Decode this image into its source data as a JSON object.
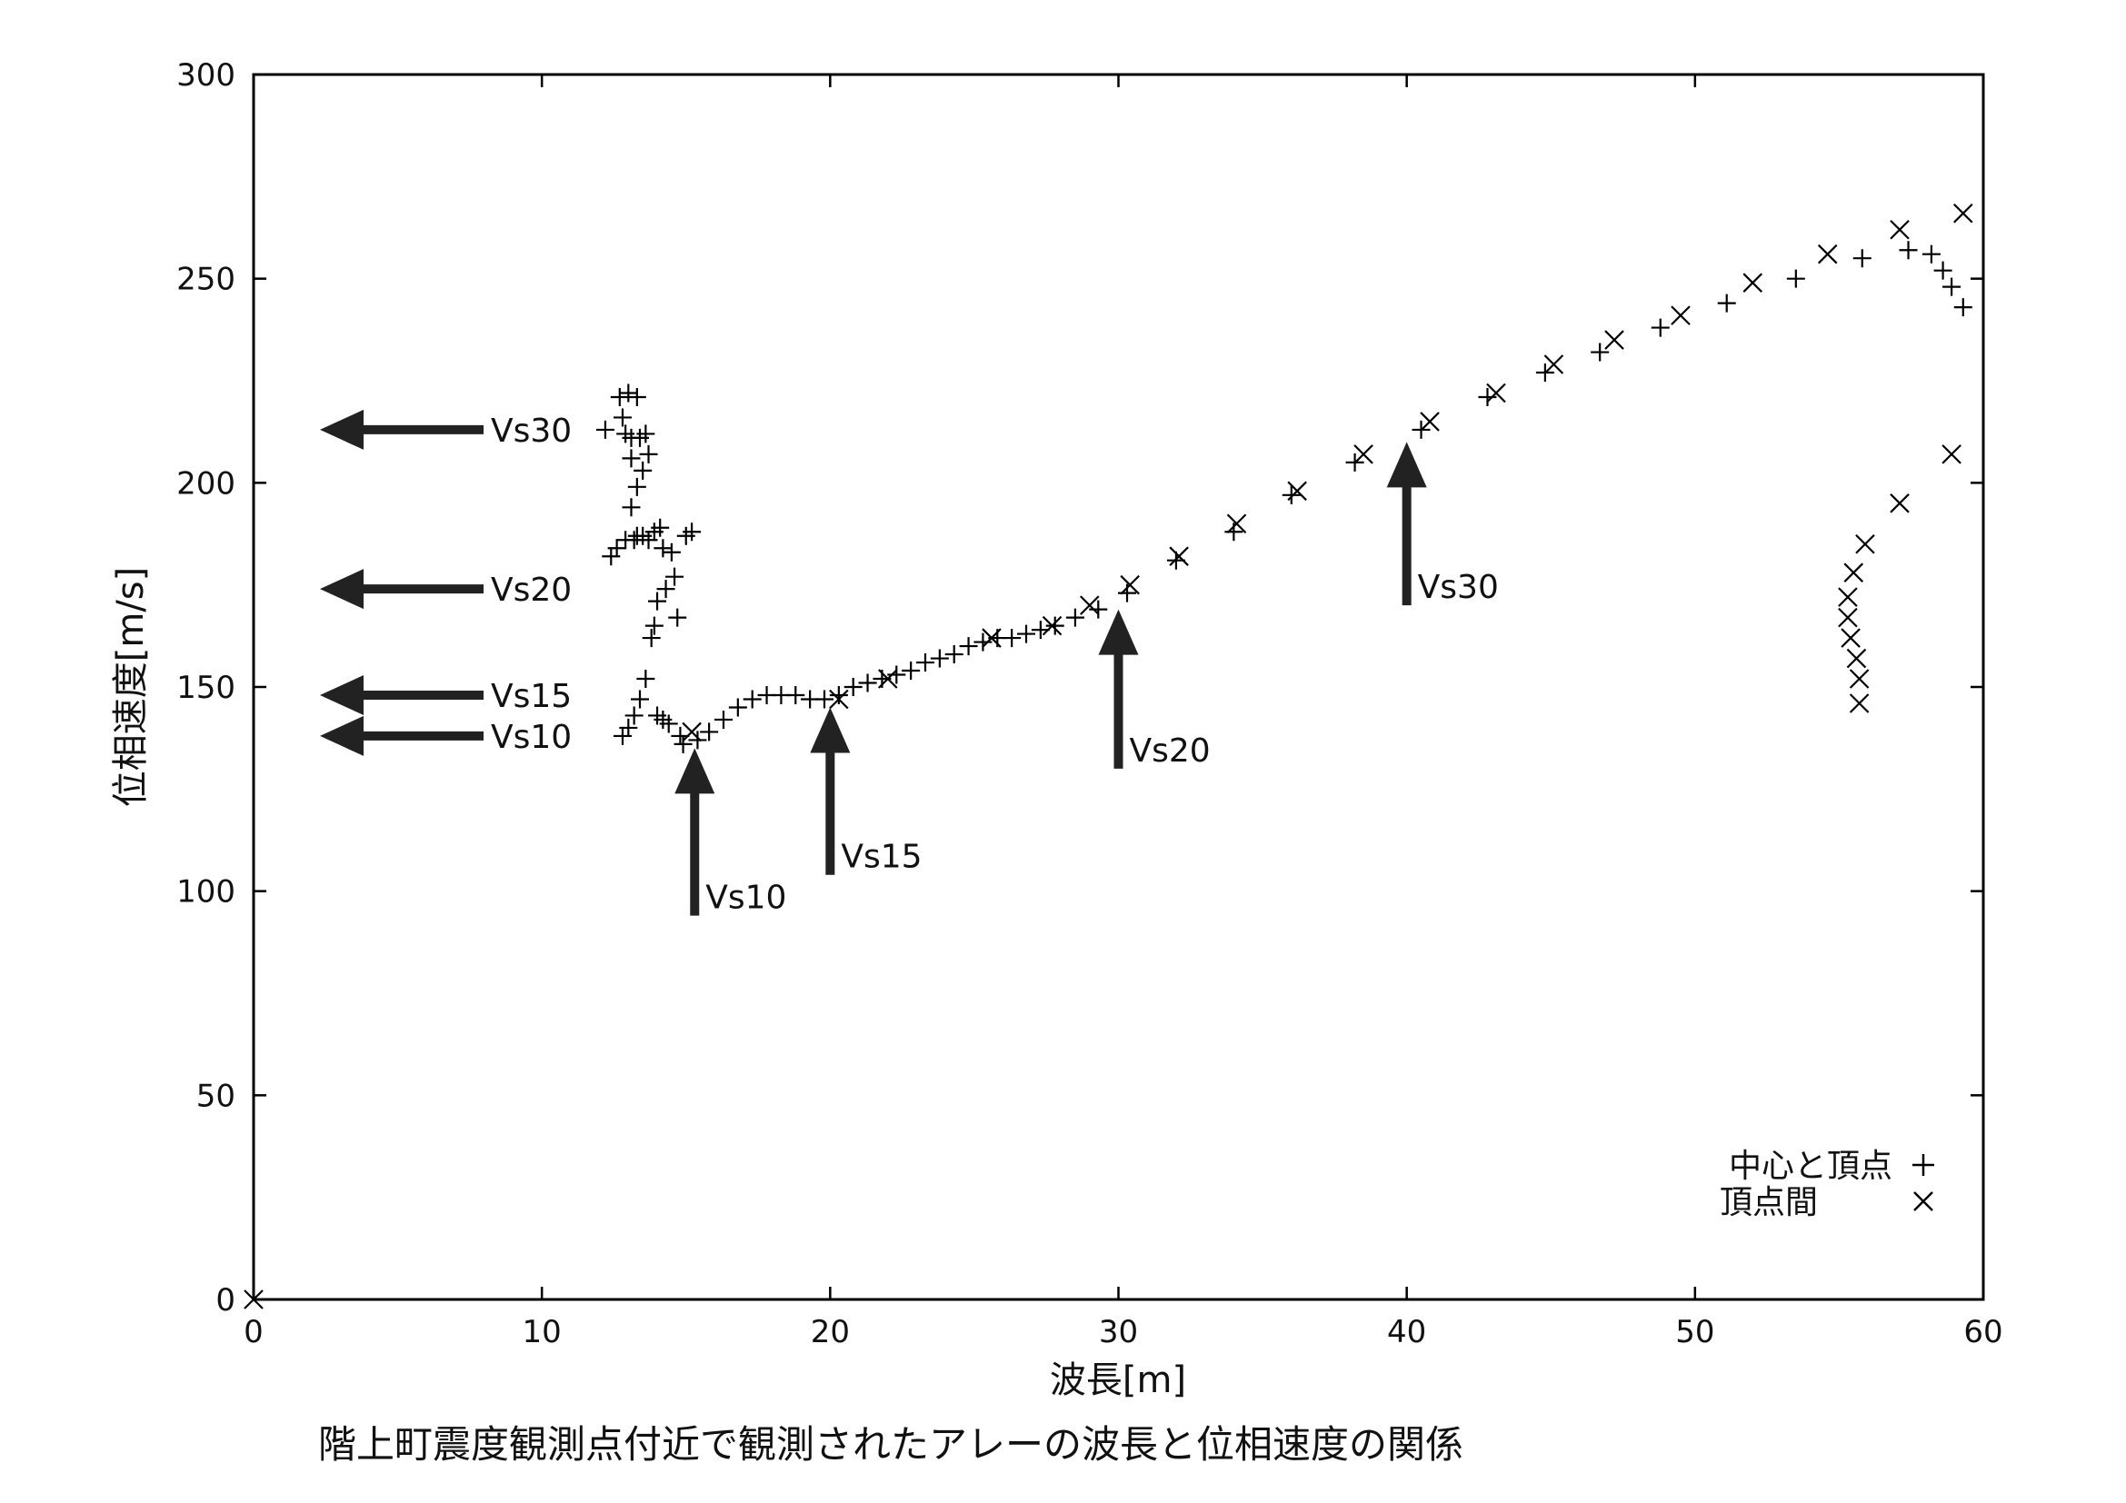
{
  "chart_data": {
    "type": "scatter",
    "title": "階上町震度観測点付近で観測されたアレーの波長と位相速度の関係",
    "xlabel": "波長[m]",
    "ylabel": "位相速度[m/s]",
    "xlim": [
      0,
      60
    ],
    "ylim": [
      0,
      300
    ],
    "xticks": [
      0,
      10,
      20,
      30,
      40,
      50,
      60
    ],
    "yticks": [
      0,
      50,
      100,
      150,
      200,
      250,
      300
    ],
    "grid": false,
    "legend_position": "bottom-right",
    "series": [
      {
        "name": "中心と頂点",
        "marker": "+",
        "points": [
          [
            12.2,
            213
          ],
          [
            12.4,
            182
          ],
          [
            12.6,
            184
          ],
          [
            12.7,
            221
          ],
          [
            12.8,
            138
          ],
          [
            12.8,
            216
          ],
          [
            12.9,
            212
          ],
          [
            12.9,
            186
          ],
          [
            13.0,
            222
          ],
          [
            13.0,
            140
          ],
          [
            13.1,
            211
          ],
          [
            13.1,
            206
          ],
          [
            13.1,
            194
          ],
          [
            13.2,
            186
          ],
          [
            13.2,
            143
          ],
          [
            13.3,
            221
          ],
          [
            13.3,
            199
          ],
          [
            13.3,
            187
          ],
          [
            13.4,
            147
          ],
          [
            13.4,
            211
          ],
          [
            13.5,
            203
          ],
          [
            13.5,
            187
          ],
          [
            13.6,
            152
          ],
          [
            13.6,
            212
          ],
          [
            13.7,
            207
          ],
          [
            13.7,
            186
          ],
          [
            13.8,
            162
          ],
          [
            13.9,
            165
          ],
          [
            13.9,
            188
          ],
          [
            14.0,
            143
          ],
          [
            14.0,
            171
          ],
          [
            14.1,
            189
          ],
          [
            14.2,
            142
          ],
          [
            14.2,
            184
          ],
          [
            14.3,
            174
          ],
          [
            14.4,
            141
          ],
          [
            14.5,
            183
          ],
          [
            14.6,
            177
          ],
          [
            14.7,
            167
          ],
          [
            14.8,
            138
          ],
          [
            14.9,
            136
          ],
          [
            15.0,
            187
          ],
          [
            15.2,
            188
          ],
          [
            15.4,
            137
          ],
          [
            15.8,
            139
          ],
          [
            16.3,
            142
          ],
          [
            16.8,
            145
          ],
          [
            17.3,
            147
          ],
          [
            17.8,
            148
          ],
          [
            18.3,
            148
          ],
          [
            18.8,
            148
          ],
          [
            19.3,
            147
          ],
          [
            19.8,
            147
          ],
          [
            20.3,
            148
          ],
          [
            20.8,
            150
          ],
          [
            21.3,
            151
          ],
          [
            21.8,
            152
          ],
          [
            22.3,
            153
          ],
          [
            22.8,
            154
          ],
          [
            23.3,
            156
          ],
          [
            23.8,
            157
          ],
          [
            24.3,
            158
          ],
          [
            24.8,
            160
          ],
          [
            25.3,
            161
          ],
          [
            25.8,
            162
          ],
          [
            26.3,
            162
          ],
          [
            26.8,
            163
          ],
          [
            27.3,
            164
          ],
          [
            27.8,
            165
          ],
          [
            28.5,
            167
          ],
          [
            29.3,
            169
          ],
          [
            30.3,
            173
          ],
          [
            32.0,
            181
          ],
          [
            34.0,
            188
          ],
          [
            36.0,
            197
          ],
          [
            38.2,
            205
          ],
          [
            40.5,
            213
          ],
          [
            42.8,
            221
          ],
          [
            44.8,
            227
          ],
          [
            46.7,
            232
          ],
          [
            48.8,
            238
          ],
          [
            51.1,
            244
          ],
          [
            53.5,
            250
          ],
          [
            55.8,
            255
          ],
          [
            57.4,
            257
          ],
          [
            58.2,
            256
          ],
          [
            58.6,
            252
          ],
          [
            58.9,
            248
          ],
          [
            59.3,
            243
          ]
        ]
      },
      {
        "name": "頂点間",
        "marker": "x",
        "points": [
          [
            0,
            0
          ],
          [
            15.2,
            139
          ],
          [
            20.3,
            147
          ],
          [
            22.0,
            152
          ],
          [
            25.6,
            162
          ],
          [
            27.7,
            165
          ],
          [
            29.0,
            170
          ],
          [
            30.4,
            175
          ],
          [
            32.1,
            182
          ],
          [
            34.1,
            190
          ],
          [
            36.2,
            198
          ],
          [
            38.5,
            207
          ],
          [
            40.8,
            215
          ],
          [
            43.1,
            222
          ],
          [
            45.1,
            229
          ],
          [
            47.2,
            235
          ],
          [
            49.5,
            241
          ],
          [
            52.0,
            249
          ],
          [
            54.6,
            256
          ],
          [
            57.1,
            262
          ],
          [
            59.3,
            266
          ],
          [
            58.9,
            207
          ],
          [
            57.1,
            195
          ],
          [
            55.9,
            185
          ],
          [
            55.5,
            178
          ],
          [
            55.3,
            172
          ],
          [
            55.3,
            167
          ],
          [
            55.4,
            162
          ],
          [
            55.6,
            157
          ],
          [
            55.7,
            152
          ],
          [
            55.7,
            146
          ]
        ]
      }
    ],
    "annotations": [
      {
        "text": "Vs30",
        "direction": "left",
        "level": 213
      },
      {
        "text": "Vs20",
        "direction": "left",
        "level": 174
      },
      {
        "text": "Vs15",
        "direction": "left",
        "level": 148
      },
      {
        "text": "Vs10",
        "direction": "left",
        "level": 138
      },
      {
        "text": "Vs10",
        "direction": "up",
        "level": 15.3
      },
      {
        "text": "Vs15",
        "direction": "up",
        "level": 20.0
      },
      {
        "text": "Vs20",
        "direction": "up",
        "level": 30.0
      },
      {
        "text": "Vs30",
        "direction": "up",
        "level": 40.0
      }
    ]
  }
}
